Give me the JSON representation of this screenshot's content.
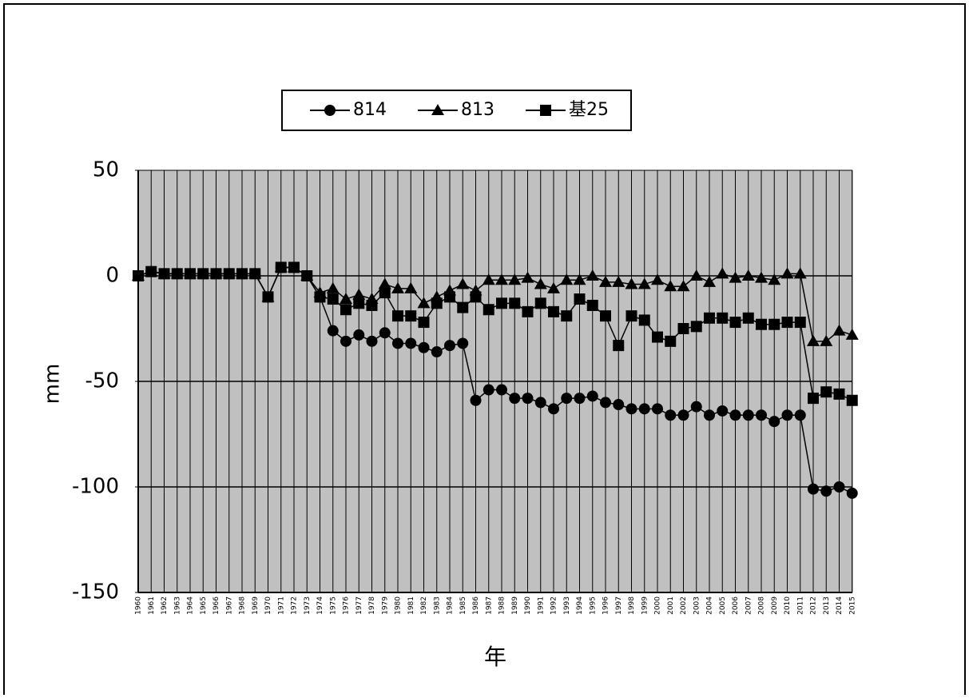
{
  "chart_data": {
    "type": "line",
    "categories": [
      "1960",
      "1961",
      "1962",
      "1963",
      "1964",
      "1965",
      "1966",
      "1967",
      "1968",
      "1969",
      "1970",
      "1971",
      "1972",
      "1973",
      "1974",
      "1975",
      "1976",
      "1977",
      "1978",
      "1979",
      "1980",
      "1981",
      "1982",
      "1983",
      "1984",
      "1985",
      "1986",
      "1987",
      "1988",
      "1989",
      "1990",
      "1991",
      "1992",
      "1993",
      "1994",
      "1995",
      "1996",
      "1997",
      "1998",
      "1999",
      "2000",
      "2001",
      "2002",
      "2003",
      "2004",
      "2005",
      "2006",
      "2007",
      "2008",
      "2009",
      "2010",
      "2011",
      "2012",
      "2013",
      "2014",
      "2015"
    ],
    "series": [
      {
        "name": "814",
        "marker": "circle",
        "color": "#000000",
        "values": [
          0,
          2,
          1,
          1,
          1,
          1,
          1,
          1,
          1,
          1,
          -10,
          4,
          4,
          0,
          -10,
          -26,
          -31,
          -28,
          -31,
          -27,
          -32,
          -32,
          -34,
          -36,
          -33,
          -32,
          -59,
          -54,
          -54,
          -58,
          -58,
          -60,
          -63,
          -58,
          -58,
          -57,
          -60,
          -61,
          -63,
          -63,
          -63,
          -66,
          -66,
          -62,
          -66,
          -64,
          -66,
          -66,
          -66,
          -69,
          -66,
          -66,
          -101,
          -102,
          -100,
          -103
        ]
      },
      {
        "name": "813",
        "marker": "triangle",
        "color": "#000000",
        "values": [
          0,
          2,
          1,
          1,
          1,
          1,
          1,
          1,
          1,
          1,
          -10,
          4,
          4,
          0,
          -8,
          -6,
          -11,
          -9,
          -11,
          -4,
          -6,
          -6,
          -13,
          -10,
          -7,
          -4,
          -7,
          -2,
          -2,
          -2,
          -1,
          -4,
          -6,
          -2,
          -2,
          0,
          -3,
          -3,
          -4,
          -4,
          -2,
          -5,
          -5,
          0,
          -3,
          1,
          -1,
          0,
          -1,
          -2,
          1,
          1,
          -31,
          -31,
          -26,
          -28
        ]
      },
      {
        "name": "基25",
        "marker": "square",
        "color": "#000000",
        "values": [
          0,
          2,
          1,
          1,
          1,
          1,
          1,
          1,
          1,
          1,
          -10,
          4,
          4,
          0,
          -10,
          -11,
          -16,
          -13,
          -14,
          -8,
          -19,
          -19,
          -22,
          -13,
          -10,
          -15,
          -10,
          -16,
          -13,
          -13,
          -17,
          -13,
          -17,
          -19,
          -11,
          -14,
          -19,
          -33,
          -19,
          -21,
          -29,
          -31,
          -25,
          -24,
          -20,
          -20,
          -22,
          -20,
          -23,
          -23,
          -22,
          -22,
          -58,
          -55,
          -56,
          -59
        ]
      }
    ],
    "ylabel": "mm",
    "xlabel": "年",
    "ylim": [
      -150,
      50
    ],
    "yticks": [
      50,
      0,
      -50,
      -100,
      -150
    ],
    "hlines": [
      0,
      -50,
      -100
    ],
    "background": "#c0c0c0",
    "grid": true,
    "legend": "top"
  }
}
